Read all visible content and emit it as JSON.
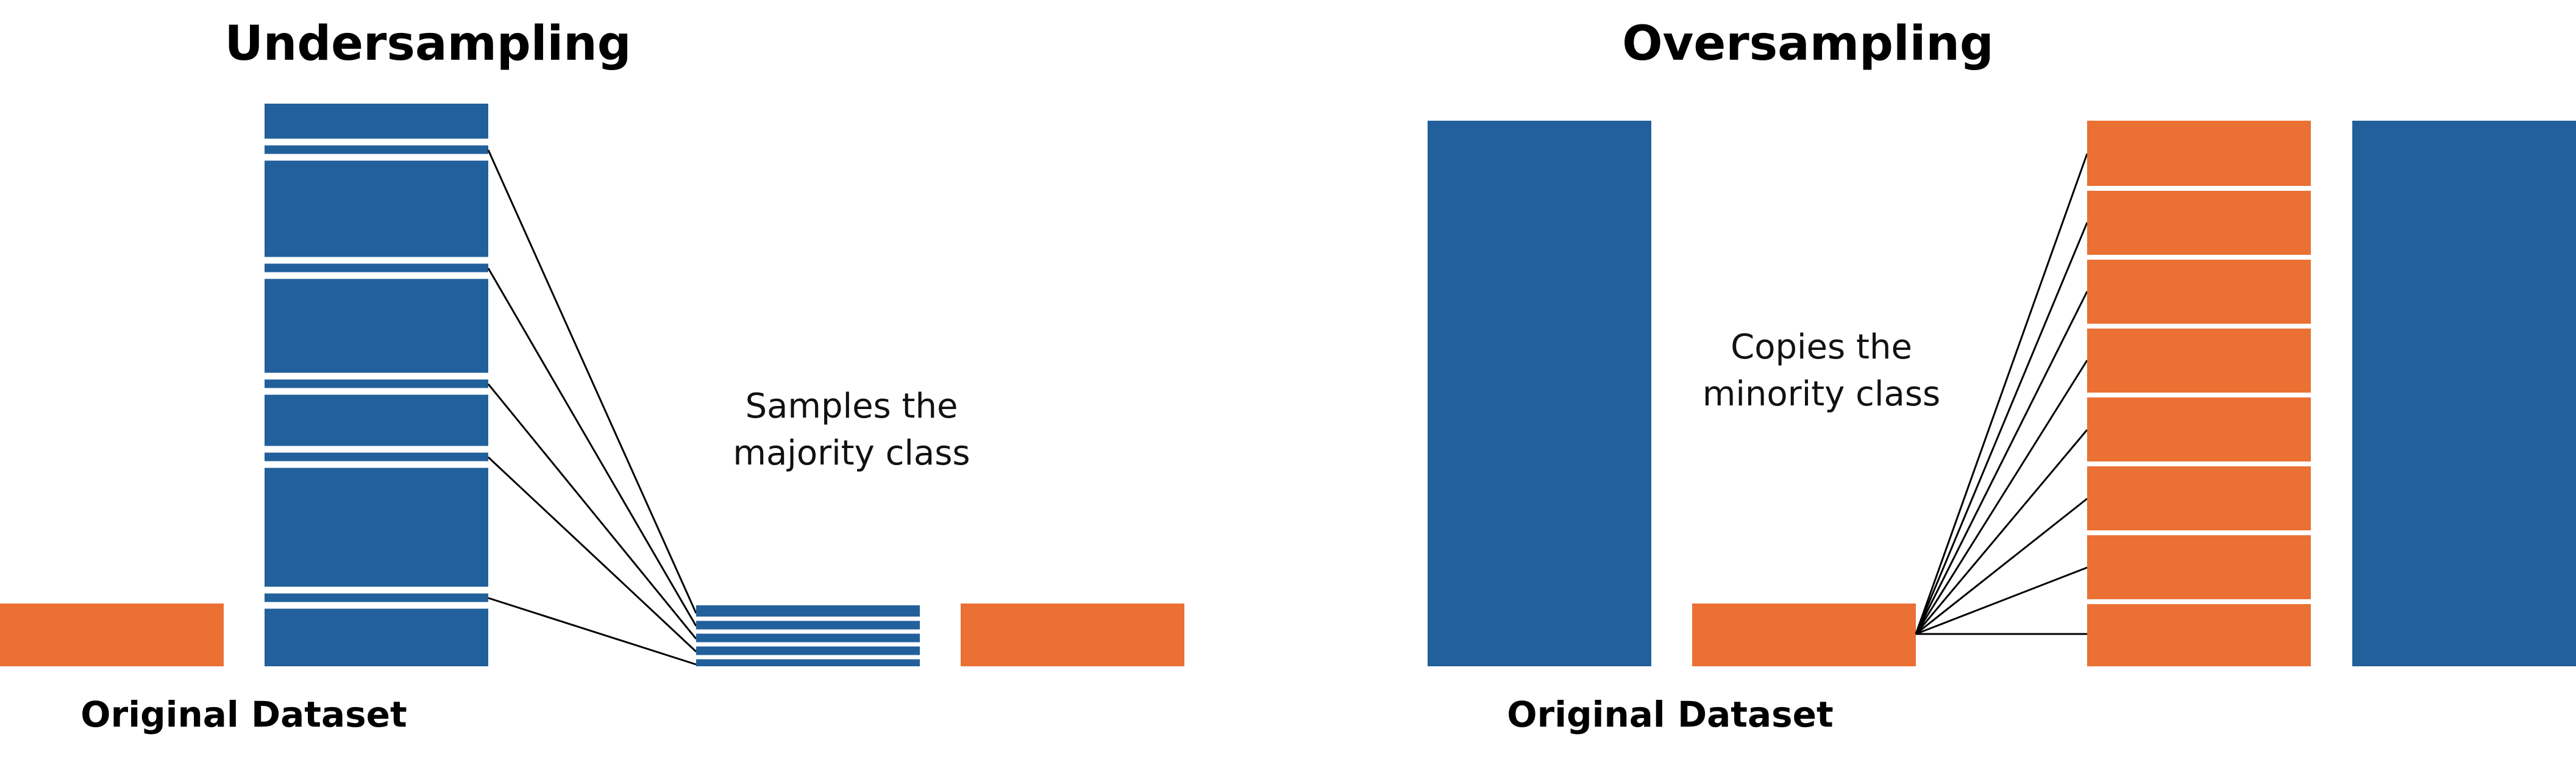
{
  "colors": {
    "majority": "#21609B",
    "minority": "#EA7034",
    "background": "#FFFFFF",
    "connector": "#000000"
  },
  "undersampling": {
    "title": "Undersampling",
    "caption_line1": "Samples the",
    "caption_line2": "majority class",
    "original_label": "Original Dataset",
    "original_majority_bar": "majority-class-bar",
    "original_minority_bar": "minority-class-bar",
    "sampled_majority_slices": 5,
    "result_minority_bar": "minority-class-bar"
  },
  "oversampling": {
    "title": "Oversampling",
    "caption_line1": "Copies the",
    "caption_line2": "minority class",
    "original_label": "Original Dataset",
    "original_majority_bar": "majority-class-bar",
    "original_minority_bar": "minority-class-bar",
    "minority_copies": 8,
    "result_majority_bar": "majority-class-bar"
  }
}
